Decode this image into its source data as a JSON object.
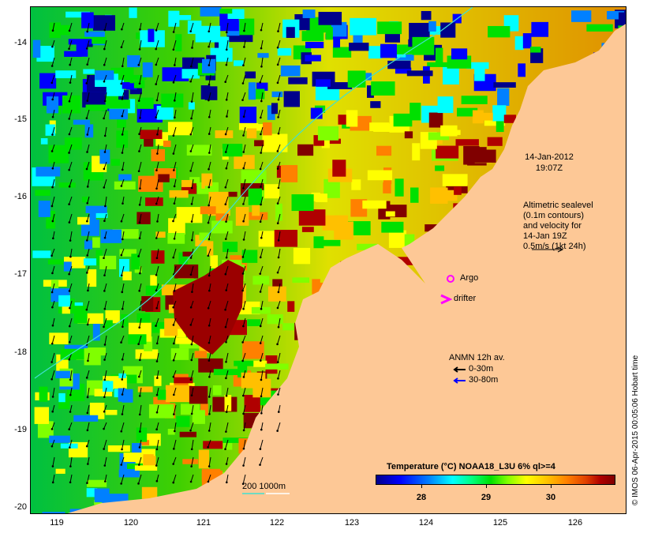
{
  "map": {
    "y_ticks": [
      "-14",
      "-15",
      "-16",
      "-17",
      "-18",
      "-19",
      "-20"
    ],
    "x_ticks": [
      "119",
      "120",
      "121",
      "122",
      "123",
      "124",
      "125",
      "126"
    ],
    "lon_range": [
      118.6,
      126.8
    ],
    "lat_range": [
      -13.55,
      -20.1
    ]
  },
  "annotations": {
    "date": "14-Jan-2012",
    "time": "19:07Z",
    "altimetry_lines": [
      "Altimetric sealevel",
      "(0.1m contours)",
      "and velocity for",
      "14-Jan 19Z",
      "0.5m/s (1kt 24h)"
    ],
    "argo_label": "Argo",
    "drifter_label": "drifter",
    "anmn_title": "ANMN 12h av.",
    "anmn_0_30": "0-30m",
    "anmn_30_80": "30-80m",
    "bathy_label": "200  1000m"
  },
  "colorbar": {
    "title": "Temperature (°C) NOAA18_L3U 6% ql>=4",
    "ticks": [
      "28",
      "29",
      "30"
    ]
  },
  "credit": "© IMOS 06-Apr-2015 00:05:06 Hobart time",
  "colors": {
    "land": "#fdc896",
    "argo": "#ff00ff",
    "drifter": "#ff00ff",
    "arrow_shallow": "#000000",
    "arrow_deep": "#0000ff",
    "bathy_contour": "#40e0d0"
  }
}
